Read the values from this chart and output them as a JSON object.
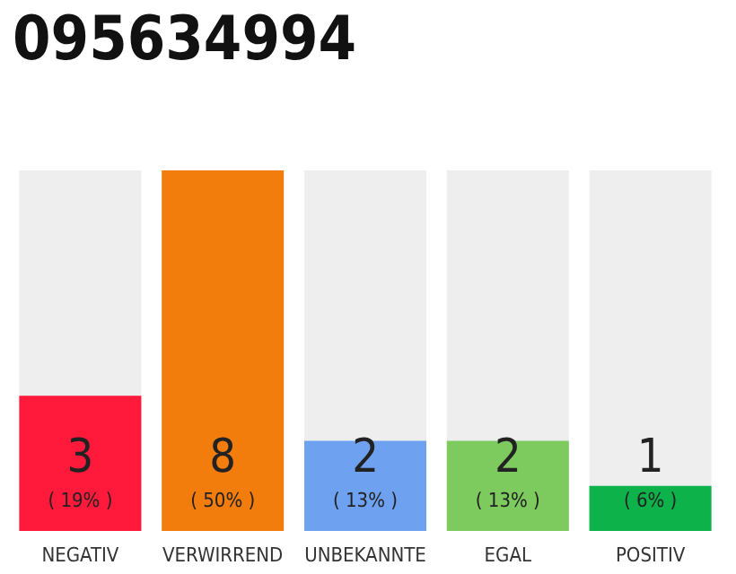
{
  "chart_data": {
    "type": "bar",
    "title": "095634994",
    "categories": [
      "NEGATIV",
      "VERWIRREND",
      "UNBEKANNTE",
      "EGAL",
      "POSITIV"
    ],
    "values": [
      3,
      8,
      2,
      2,
      1
    ],
    "colors": [
      "#ff1a3c",
      "#f27c0c",
      "#6ea1f0",
      "#7dcb5e",
      "#0db34a"
    ],
    "value_labels": [
      "3\n( 19% )",
      "8\n( 50% )",
      "2\n( 13% )",
      "2\n( 13% )",
      "1\n( 6% )"
    ]
  }
}
